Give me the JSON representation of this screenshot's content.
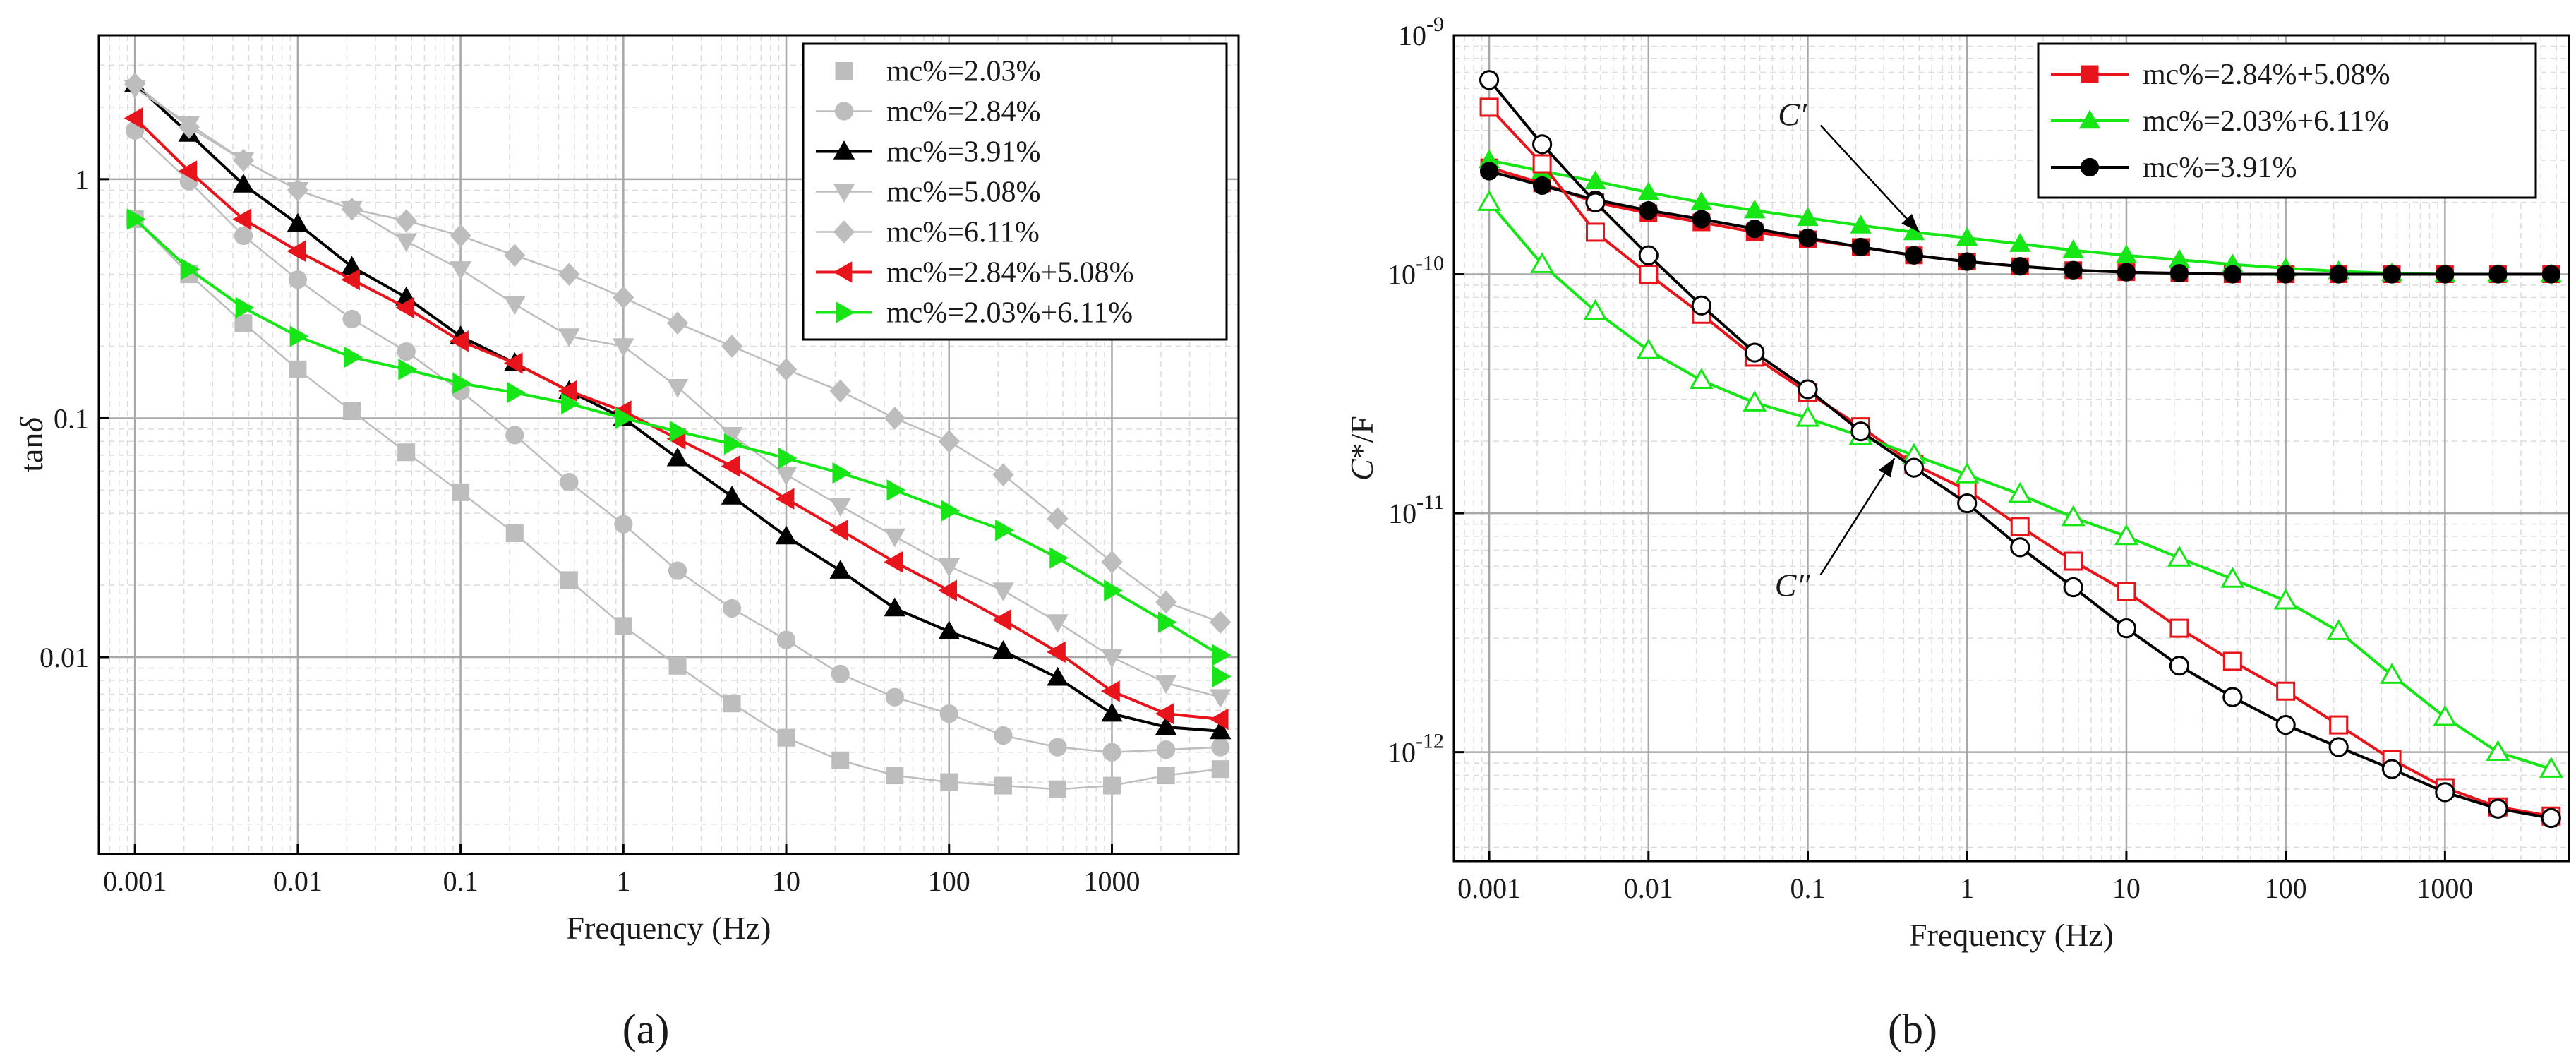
{
  "figure": {
    "panel_labels": [
      "(a)",
      "(b)"
    ]
  },
  "chart_data": [
    {
      "panel": "(a)",
      "type": "line",
      "xscale": "log",
      "yscale": "log",
      "xlabel": "Frequency (Hz)",
      "ylabel": "tanδ",
      "xlim": [
        0.0006,
        6000
      ],
      "ylim": [
        0.0015,
        4
      ],
      "xticks": [
        {
          "value": 0.001,
          "label": "0.001"
        },
        {
          "value": 0.01,
          "label": "0.01"
        },
        {
          "value": 0.1,
          "label": "0.1"
        },
        {
          "value": 1,
          "label": "1"
        },
        {
          "value": 10,
          "label": "10"
        },
        {
          "value": 100,
          "label": "100"
        },
        {
          "value": 1000,
          "label": "1000"
        }
      ],
      "yticks": [
        {
          "value": 0.01,
          "label": "0.01"
        },
        {
          "value": 0.1,
          "label": "0.1"
        },
        {
          "value": 1,
          "label": "1"
        }
      ],
      "grid": true,
      "legend_position": "top-right",
      "x": [
        0.001,
        0.00215,
        0.00464,
        0.01,
        0.0215,
        0.0464,
        0.1,
        0.215,
        0.464,
        1,
        2.15,
        4.64,
        10,
        21.5,
        46.4,
        100,
        215,
        464,
        1000,
        2150,
        4640
      ],
      "series": [
        {
          "name": "mc%=2.03%",
          "color": "#bdbdbd",
          "marker": "square",
          "filled": true,
          "values": [
            0.68,
            0.4,
            0.25,
            0.16,
            0.107,
            0.072,
            0.049,
            0.033,
            0.021,
            0.0135,
            0.0092,
            0.0064,
            0.0046,
            0.0037,
            0.0032,
            0.003,
            0.0029,
            0.0028,
            0.0029,
            0.0032,
            0.0034
          ]
        },
        {
          "name": "mc%=2.84%",
          "color": "#bdbdbd",
          "marker": "circle",
          "filled": true,
          "values": [
            1.6,
            0.98,
            0.58,
            0.38,
            0.26,
            0.19,
            0.13,
            0.085,
            0.054,
            0.036,
            0.023,
            0.016,
            0.0118,
            0.0085,
            0.0068,
            0.0058,
            0.0047,
            0.0042,
            0.004,
            0.0041,
            0.0042
          ]
        },
        {
          "name": "mc%=3.91%",
          "color": "#000000",
          "marker": "triangle-up",
          "filled": true,
          "values": [
            2.5,
            1.55,
            0.95,
            0.65,
            0.43,
            0.32,
            0.22,
            0.17,
            0.13,
            0.1,
            0.068,
            0.047,
            0.032,
            0.023,
            0.016,
            0.0128,
            0.0106,
            0.0082,
            0.0058,
            0.0051,
            0.0049
          ]
        },
        {
          "name": "mc%=5.08%",
          "color": "#bdbdbd",
          "marker": "triangle-down",
          "filled": true,
          "values": [
            2.4,
            1.7,
            1.2,
            0.9,
            0.75,
            0.55,
            0.42,
            0.3,
            0.22,
            0.2,
            0.135,
            0.085,
            0.058,
            0.043,
            0.032,
            0.024,
            0.019,
            0.014,
            0.01,
            0.0078,
            0.0068
          ]
        },
        {
          "name": "mc%=6.11%",
          "color": "#bdbdbd",
          "marker": "diamond",
          "filled": true,
          "values": [
            2.5,
            1.65,
            1.2,
            0.9,
            0.75,
            0.67,
            0.58,
            0.48,
            0.4,
            0.32,
            0.25,
            0.2,
            0.16,
            0.13,
            0.1,
            0.08,
            0.058,
            0.038,
            0.025,
            0.017,
            0.014
          ]
        },
        {
          "name": "mc%=2.84%+5.08%",
          "color": "#e8141c",
          "marker": "triangle-left",
          "filled": true,
          "values": [
            1.8,
            1.08,
            0.68,
            0.5,
            0.38,
            0.29,
            0.21,
            0.17,
            0.13,
            0.107,
            0.082,
            0.063,
            0.046,
            0.034,
            0.025,
            0.019,
            0.0143,
            0.0105,
            0.0072,
            0.0058,
            0.0055
          ]
        },
        {
          "name": "mc%=2.03%+6.11%",
          "color": "#16e616",
          "marker": "triangle-right",
          "filled": true,
          "values": [
            0.68,
            0.42,
            0.29,
            0.22,
            0.18,
            0.16,
            0.14,
            0.128,
            0.115,
            0.1,
            0.088,
            0.078,
            0.068,
            0.059,
            0.05,
            0.041,
            0.034,
            0.026,
            0.019,
            0.014,
            0.0102
          ]
        }
      ],
      "extra_points": [
        {
          "series": "mc%=2.03%+6.11%",
          "x": 4640,
          "y": 0.0083
        }
      ]
    },
    {
      "panel": "(b)",
      "type": "line",
      "xscale": "log",
      "yscale": "log",
      "xlabel": "Frequency (Hz)",
      "ylabel": "C*/F",
      "xlim": [
        0.0006,
        6000
      ],
      "ylim": [
        3.5e-13,
        1e-09
      ],
      "xticks": [
        {
          "value": 0.001,
          "label": "0.001"
        },
        {
          "value": 0.01,
          "label": "0.01"
        },
        {
          "value": 0.1,
          "label": "0.1"
        },
        {
          "value": 1,
          "label": "1"
        },
        {
          "value": 10,
          "label": "10"
        },
        {
          "value": 100,
          "label": "100"
        },
        {
          "value": 1000,
          "label": "1000"
        }
      ],
      "yticks": [
        {
          "value": 1e-12,
          "base": "10",
          "exp": "-12"
        },
        {
          "value": 1e-11,
          "base": "10",
          "exp": "-11"
        },
        {
          "value": 1e-10,
          "base": "10",
          "exp": "-10"
        },
        {
          "value": 1e-09,
          "base": "10",
          "exp": "-9"
        }
      ],
      "grid": true,
      "legend_position": "top-right",
      "annotations": [
        {
          "text": "C′",
          "target": "C′ (real part) curves",
          "target_x": 0.5,
          "target_y": 1.5e-10,
          "label_x": 0.08,
          "label_y": 4.2e-10
        },
        {
          "text": "C″",
          "target": "C″ (imaginary part) curves",
          "target_x": 0.35,
          "target_y": 1.7e-11,
          "label_x": 0.08,
          "label_y": 4.5e-12
        }
      ],
      "x": [
        0.001,
        0.00215,
        0.00464,
        0.01,
        0.0215,
        0.0464,
        0.1,
        0.215,
        0.464,
        1,
        2.15,
        4.64,
        10,
        21.5,
        46.4,
        100,
        215,
        464,
        1000,
        2150,
        4640
      ],
      "series": [
        {
          "name": "mc%=2.84%+5.08%",
          "part": "C′",
          "color": "#e8141c",
          "marker": "square",
          "filled": true,
          "legend": true,
          "values": [
            2.8e-10,
            2.4e-10,
            2e-10,
            1.8e-10,
            1.65e-10,
            1.5e-10,
            1.4e-10,
            1.3e-10,
            1.2e-10,
            1.13e-10,
            1.08e-10,
            1.04e-10,
            1.02e-10,
            1.01e-10,
            1e-10,
            1e-10,
            1e-10,
            1e-10,
            1e-10,
            1e-10,
            1e-10
          ]
        },
        {
          "name": "mc%=2.03%+6.11%",
          "part": "C′",
          "color": "#16e616",
          "marker": "triangle-up",
          "filled": true,
          "legend": true,
          "values": [
            3e-10,
            2.7e-10,
            2.45e-10,
            2.2e-10,
            2e-10,
            1.85e-10,
            1.72e-10,
            1.6e-10,
            1.5e-10,
            1.42e-10,
            1.34e-10,
            1.26e-10,
            1.2e-10,
            1.15e-10,
            1.1e-10,
            1.06e-10,
            1.03e-10,
            1.01e-10,
            1e-10,
            1e-10,
            1e-10
          ]
        },
        {
          "name": "mc%=3.91%",
          "part": "C′",
          "color": "#000000",
          "marker": "circle",
          "filled": true,
          "legend": true,
          "values": [
            2.7e-10,
            2.35e-10,
            2.05e-10,
            1.85e-10,
            1.7e-10,
            1.55e-10,
            1.42e-10,
            1.3e-10,
            1.2e-10,
            1.13e-10,
            1.08e-10,
            1.04e-10,
            1.02e-10,
            1.01e-10,
            1e-10,
            1e-10,
            1e-10,
            1e-10,
            1e-10,
            1e-10,
            1e-10
          ]
        },
        {
          "name": "mc%=2.84%+5.08%",
          "part": "C″",
          "color": "#e8141c",
          "marker": "square",
          "filled": false,
          "legend": false,
          "values": [
            5e-10,
            2.9e-10,
            1.5e-10,
            1e-10,
            6.8e-11,
            4.5e-11,
            3.2e-11,
            2.3e-11,
            1.6e-11,
            1.25e-11,
            8.8e-12,
            6.3e-12,
            4.7e-12,
            3.3e-12,
            2.4e-12,
            1.8e-12,
            1.3e-12,
            9.3e-13,
            7.1e-13,
            5.9e-13,
            5.4e-13
          ]
        },
        {
          "name": "mc%=2.03%+6.11%",
          "part": "C″",
          "color": "#16e616",
          "marker": "triangle-up",
          "filled": false,
          "legend": false,
          "values": [
            2e-10,
            1.1e-10,
            7e-11,
            4.8e-11,
            3.6e-11,
            2.9e-11,
            2.5e-11,
            2.1e-11,
            1.75e-11,
            1.45e-11,
            1.2e-11,
            9.6e-12,
            8e-12,
            6.5e-12,
            5.3e-12,
            4.3e-12,
            3.2e-12,
            2.1e-12,
            1.4e-12,
            1e-12,
            8.5e-13
          ]
        },
        {
          "name": "mc%=3.91%",
          "part": "C″",
          "color": "#000000",
          "marker": "circle",
          "filled": false,
          "legend": false,
          "values": [
            6.5e-10,
            3.5e-10,
            2e-10,
            1.2e-10,
            7.4e-11,
            4.7e-11,
            3.3e-11,
            2.2e-11,
            1.55e-11,
            1.1e-11,
            7.2e-12,
            4.9e-12,
            3.3e-12,
            2.3e-12,
            1.7e-12,
            1.3e-12,
            1.05e-12,
            8.5e-13,
            6.8e-13,
            5.8e-13,
            5.3e-13
          ]
        }
      ]
    }
  ]
}
